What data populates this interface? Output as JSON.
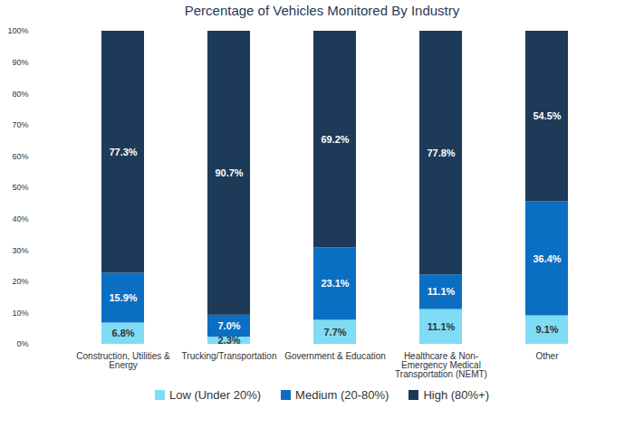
{
  "chart_data": {
    "type": "bar",
    "title": "Percentage of Vehicles Monitored By Industry",
    "categories": [
      "Construction, Utilities & Energy",
      "Trucking/Transportation",
      "Government & Education",
      "Healthcare & Non-Emergency Medical Transportation (NEMT)",
      "Other"
    ],
    "series": [
      {
        "name": "Low (Under 20%)",
        "color": "#7fdcf5",
        "values": [
          6.8,
          2.3,
          7.7,
          11.1,
          9.1
        ],
        "value_labels": [
          "6.8%",
          "2.3%",
          "7.7%",
          "11.1%",
          "9.1%"
        ]
      },
      {
        "name": "Medium (20-80%)",
        "color": "#0a6fc2",
        "values": [
          15.9,
          7.0,
          23.1,
          11.1,
          36.4
        ],
        "value_labels": [
          "15.9%",
          "7.0%",
          "23.1%",
          "11.1%",
          "36.4%"
        ]
      },
      {
        "name": "High (80%+)",
        "color": "#1d3a58",
        "values": [
          77.3,
          90.7,
          69.2,
          77.8,
          54.5
        ],
        "value_labels": [
          "77.3%",
          "90.7%",
          "69.2%",
          "77.8%",
          "54.5%"
        ]
      }
    ],
    "ylim": [
      0,
      100
    ],
    "yticks": [
      {
        "value": 0,
        "label": "0%"
      },
      {
        "value": 10,
        "label": "10%"
      },
      {
        "value": 20,
        "label": "20%"
      },
      {
        "value": 30,
        "label": "30%"
      },
      {
        "value": 40,
        "label": "40%"
      },
      {
        "value": 50,
        "label": "50%"
      },
      {
        "value": 60,
        "label": "60%"
      },
      {
        "value": 70,
        "label": "70%"
      },
      {
        "value": 80,
        "label": "80%"
      },
      {
        "value": 90,
        "label": "90%"
      },
      {
        "value": 100,
        "label": "100%"
      }
    ],
    "stacked": true,
    "data_labels": true,
    "grid": false,
    "legend": "bottom"
  }
}
